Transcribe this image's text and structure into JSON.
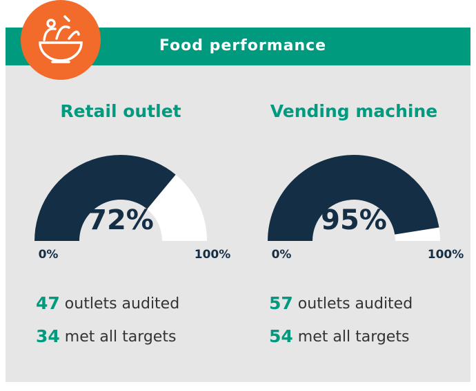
{
  "header": {
    "title": "Food performance"
  },
  "chart_data": [
    {
      "type": "gauge",
      "title": "Retail outlet",
      "values": [
        72
      ],
      "value_labels": [
        "72%"
      ],
      "ylim": [
        0,
        100
      ],
      "yticks": [
        {
          "value": 0,
          "label": "0%"
        },
        {
          "value": 100,
          "label": "100%"
        }
      ],
      "color": "#142f45",
      "track_color": "#ffffff",
      "stats": [
        {
          "value": 47,
          "label": "outlets audited"
        },
        {
          "value": 34,
          "label": "met all targets"
        }
      ]
    },
    {
      "type": "gauge",
      "title": "Vending machine",
      "values": [
        95
      ],
      "value_labels": [
        "95%"
      ],
      "ylim": [
        0,
        100
      ],
      "yticks": [
        {
          "value": 0,
          "label": "0%"
        },
        {
          "value": 100,
          "label": "100%"
        }
      ],
      "color": "#142f45",
      "track_color": "#ffffff",
      "stats": [
        {
          "value": 57,
          "label": "outlets audited"
        },
        {
          "value": 54,
          "label": "met all targets"
        }
      ]
    }
  ]
}
